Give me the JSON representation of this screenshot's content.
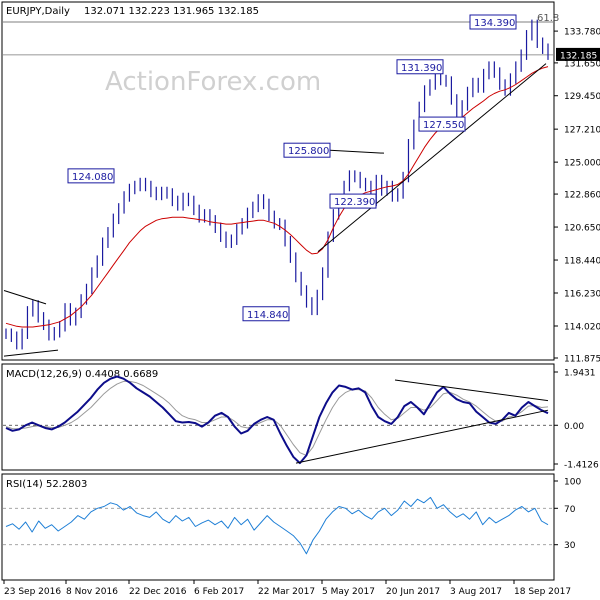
{
  "chart_data": [
    {
      "panel": "price",
      "type": "line",
      "title": "EURJPY,Daily",
      "ohlc_header": "132.071 132.223 131.965 132.185",
      "watermark": "ActionForex.com",
      "ylim": [
        111.875,
        134.39
      ],
      "yticks": [
        "133.780",
        "131.650",
        "129.450",
        "127.210",
        "125.000",
        "122.860",
        "120.650",
        "118.440",
        "116.230",
        "114.020",
        "111.875"
      ],
      "last_price": "132.185",
      "fib_label": "61.8",
      "annotations": [
        "134.390",
        "131.390",
        "127.550",
        "125.800",
        "124.080",
        "122.390",
        "114.840"
      ],
      "series": [
        {
          "name": "",
          "color": "#1a1aa0",
          "values": [
            113.5,
            113.3,
            112.8,
            113.5,
            115.0,
            115.4,
            114.6,
            114.1,
            113.4,
            113.6,
            114.0,
            115.2,
            114.4,
            114.9,
            115.8,
            116.5,
            117.6,
            118.4,
            119.6,
            120.3,
            121.2,
            121.9,
            122.7,
            123.2,
            123.4,
            123.6,
            123.4,
            123.0,
            122.8,
            123.0,
            122.9,
            122.4,
            122.1,
            122.6,
            122.4,
            121.8,
            121.3,
            121.5,
            121.1,
            120.6,
            120.0,
            119.6,
            119.8,
            120.5,
            120.9,
            121.6,
            122.0,
            122.5,
            122.2,
            121.4,
            120.9,
            120.8,
            119.7,
            118.6,
            117.3,
            116.4,
            115.6,
            115.1,
            116.1,
            117.6,
            120.0,
            121.5,
            122.5,
            123.4,
            124.1,
            124.0,
            123.6,
            123.4,
            122.4,
            123.8,
            123.1,
            123.4,
            122.7,
            122.9,
            124.0,
            126.2,
            127.5,
            128.7,
            129.8,
            130.2,
            130.9,
            130.5,
            130.4,
            129.2,
            128.1,
            128.8,
            129.7,
            130.3,
            130.0,
            130.9,
            131.4,
            131.0,
            130.2,
            129.8,
            130.6,
            131.4,
            132.2,
            133.5,
            134.2,
            133.0,
            132.6,
            132.2
          ]
        },
        {
          "name": "",
          "color": "#cc0000",
          "values": [
            114.2,
            114.1,
            114.0,
            113.95,
            113.95,
            113.95,
            114.0,
            114.05,
            114.1,
            114.2,
            114.3,
            114.5,
            114.7,
            115.0,
            115.3,
            115.7,
            116.1,
            116.6,
            117.1,
            117.6,
            118.1,
            118.6,
            119.1,
            119.6,
            120.0,
            120.4,
            120.7,
            120.9,
            121.1,
            121.2,
            121.25,
            121.3,
            121.3,
            121.3,
            121.25,
            121.2,
            121.15,
            121.1,
            121.0,
            120.95,
            120.9,
            120.85,
            120.85,
            120.9,
            120.95,
            121.0,
            121.05,
            121.1,
            121.1,
            121.0,
            120.9,
            120.7,
            120.45,
            120.15,
            119.8,
            119.45,
            119.1,
            118.85,
            118.9,
            119.2,
            119.8,
            120.6,
            121.3,
            121.9,
            122.3,
            122.6,
            122.8,
            122.95,
            123.05,
            123.15,
            123.25,
            123.35,
            123.4,
            123.5,
            123.75,
            124.2,
            124.8,
            125.4,
            126.0,
            126.5,
            126.95,
            127.3,
            127.55,
            127.7,
            127.8,
            128.0,
            128.3,
            128.6,
            128.85,
            129.1,
            129.4,
            129.6,
            129.75,
            129.85,
            130.0,
            130.2,
            130.45,
            130.7,
            130.95,
            131.15,
            131.3,
            131.4
          ]
        }
      ]
    },
    {
      "panel": "macd",
      "type": "line",
      "title": "MACD(12,26,9) 0.4408 0.6689",
      "ylim": [
        -1.4126,
        1.9431
      ],
      "yticks": [
        "1.9431",
        "0.00",
        "-1.4126"
      ],
      "series": [
        {
          "name": "",
          "color": "#0d0d8a",
          "values": [
            -0.1,
            -0.2,
            -0.15,
            0.0,
            0.1,
            0.0,
            -0.1,
            -0.15,
            -0.05,
            0.1,
            0.3,
            0.5,
            0.75,
            1.0,
            1.3,
            1.55,
            1.7,
            1.78,
            1.7,
            1.55,
            1.35,
            1.2,
            1.05,
            0.85,
            0.65,
            0.4,
            0.15,
            0.1,
            0.12,
            0.08,
            -0.05,
            0.1,
            0.35,
            0.45,
            0.3,
            -0.05,
            -0.3,
            -0.2,
            0.05,
            0.2,
            0.3,
            0.2,
            -0.3,
            -0.75,
            -1.15,
            -1.38,
            -1.1,
            -0.4,
            0.3,
            0.8,
            1.2,
            1.45,
            1.4,
            1.3,
            1.35,
            1.2,
            0.7,
            0.3,
            0.15,
            0.05,
            0.3,
            0.7,
            0.85,
            0.65,
            0.4,
            0.8,
            1.2,
            1.4,
            1.15,
            0.95,
            0.85,
            0.8,
            0.5,
            0.3,
            0.1,
            0.05,
            0.2,
            0.45,
            0.35,
            0.65,
            0.85,
            0.7,
            0.55,
            0.44
          ]
        },
        {
          "name": "",
          "color": "#9a9a9a",
          "values": [
            -0.05,
            -0.12,
            -0.13,
            -0.1,
            -0.05,
            -0.02,
            -0.05,
            -0.08,
            -0.08,
            0.0,
            0.1,
            0.25,
            0.45,
            0.65,
            0.9,
            1.15,
            1.35,
            1.5,
            1.6,
            1.6,
            1.55,
            1.45,
            1.3,
            1.15,
            1.0,
            0.8,
            0.55,
            0.35,
            0.25,
            0.2,
            0.1,
            0.1,
            0.2,
            0.3,
            0.3,
            0.15,
            -0.05,
            -0.1,
            0.0,
            0.1,
            0.2,
            0.2,
            0.0,
            -0.35,
            -0.7,
            -1.0,
            -1.1,
            -0.8,
            -0.3,
            0.2,
            0.65,
            1.0,
            1.2,
            1.3,
            1.3,
            1.25,
            1.0,
            0.65,
            0.4,
            0.2,
            0.25,
            0.45,
            0.65,
            0.65,
            0.55,
            0.65,
            0.9,
            1.15,
            1.2,
            1.1,
            0.95,
            0.85,
            0.7,
            0.5,
            0.3,
            0.15,
            0.15,
            0.3,
            0.35,
            0.5,
            0.7,
            0.72,
            0.65,
            0.67
          ]
        }
      ]
    },
    {
      "panel": "rsi",
      "type": "line",
      "title": "RSI(14) 52.2803",
      "ylim": [
        0,
        100
      ],
      "yticks": [
        "100",
        "70",
        "30",
        "0"
      ],
      "series": [
        {
          "name": "",
          "color": "#1e7fd6",
          "values": [
            50,
            53,
            47,
            55,
            44,
            56,
            48,
            52,
            45,
            50,
            55,
            62,
            58,
            66,
            70,
            72,
            76,
            74,
            68,
            72,
            65,
            62,
            60,
            66,
            58,
            54,
            62,
            56,
            60,
            50,
            54,
            57,
            52,
            56,
            48,
            60,
            52,
            58,
            46,
            54,
            62,
            55,
            50,
            45,
            40,
            32,
            20,
            35,
            45,
            58,
            66,
            72,
            70,
            64,
            68,
            62,
            58,
            66,
            70,
            62,
            68,
            78,
            72,
            80,
            76,
            82,
            70,
            74,
            66,
            60,
            64,
            58,
            66,
            52,
            60,
            54,
            58,
            62,
            68,
            72,
            66,
            70,
            56,
            52
          ]
        }
      ]
    },
    {
      "panel": "x-axis",
      "categories": [
        "23 Sep 2016",
        "8 Nov 2016",
        "22 Dec 2016",
        "6 Feb 2017",
        "22 Mar 2017",
        "5 May 2017",
        "20 Jun 2017",
        "3 Aug 2017",
        "18 Sep 2017"
      ]
    }
  ]
}
